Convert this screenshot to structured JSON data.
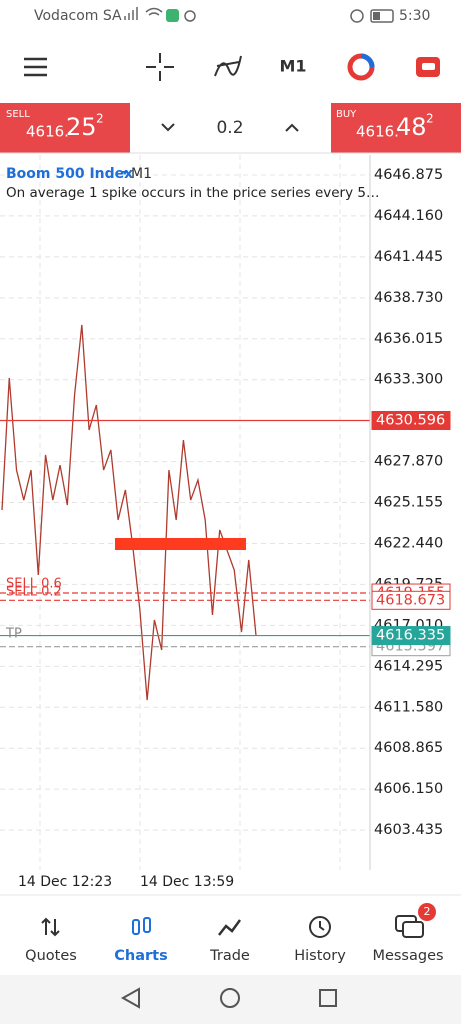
{
  "status_bar": {
    "carrier": "Vodacom SA",
    "time": "5:30"
  },
  "toolbar": {
    "timeframe": "M1"
  },
  "trade_panel": {
    "sell_label": "SELL",
    "sell_price_main": "4616.",
    "sell_price_big": "25",
    "sell_price_sup": "2",
    "volume": "0.2",
    "buy_label": "BUY",
    "buy_price_main": "4616.",
    "buy_price_big": "48",
    "buy_price_sup": "2"
  },
  "chart_data": {
    "type": "line",
    "title": "Boom 500 Index",
    "timeframe": "M1",
    "subtitle": "On average 1 spike occurs in the price series every 5…",
    "ylim": [
      4600.79,
      4648.2
    ],
    "yticks": [
      {
        "value": 4646.875,
        "label": "4646.875"
      },
      {
        "value": 4644.16,
        "label": "4644.160"
      },
      4641.445,
      {
        "value": 4638.73,
        "label": "4638.730"
      },
      4636.015,
      {
        "value": 4633.3,
        "label": "4633.300"
      },
      {
        "value": 4627.87,
        "label": "4627.870"
      },
      4625.155,
      {
        "value": 4622.44,
        "label": "4622.440"
      },
      4619.725,
      {
        "value": 4617.01,
        "label": "4617.010"
      },
      4614.295,
      {
        "value": 4611.58,
        "label": "4611.580"
      },
      4608.865,
      {
        "value": 4606.15,
        "label": "4606.150"
      },
      4603.435
    ],
    "grid": true,
    "series": [
      {
        "color": "#b03a2e",
        "values": [
          4624.66,
          4633.41,
          4627.31,
          4625.32,
          4627.31,
          4620.35,
          4628.31,
          4625.32,
          4627.64,
          4624.99,
          4632.29,
          4636.93,
          4629.97,
          4631.62,
          4627.31,
          4628.64,
          4624.0,
          4625.99,
          4622.34,
          4618.03,
          4612.06,
          4617.37,
          4615.38,
          4627.31,
          4624.0,
          4629.3,
          4625.32,
          4626.65,
          4624.0,
          4617.7,
          4623.34,
          4622.01,
          4620.68,
          4616.57,
          4621.35,
          4616.34
        ]
      }
    ],
    "levels": [
      {
        "value": 4630.596,
        "color": "#e53935",
        "style": "solid",
        "filled": true
      },
      {
        "value": 4619.155,
        "color": "#e53935",
        "style": "dashed",
        "filled": false
      },
      {
        "value": 4618.673,
        "color": "#e53935",
        "style": "dashed",
        "filled": false
      },
      {
        "value": 4615.597,
        "color": "#9e9e9e",
        "style": "dashed",
        "filled": false
      },
      {
        "value": 4616.335,
        "color": "#26a69a",
        "style": "solid",
        "filled": true
      }
    ],
    "order_labels": [
      "SELL 0.6",
      "SELL 0.2",
      "TP"
    ],
    "time_labels": [
      "14 Dec 12:23",
      "14 Dec 13:59"
    ]
  },
  "bottom_nav": {
    "items": [
      "Quotes",
      "Charts",
      "Trade",
      "History",
      "Messages"
    ],
    "badge": "2"
  }
}
